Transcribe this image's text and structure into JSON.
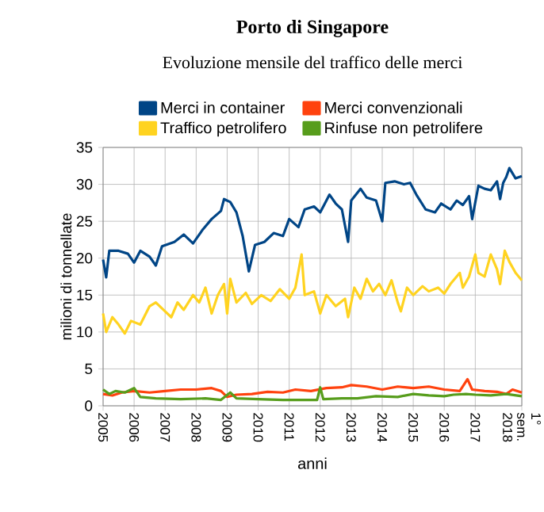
{
  "chart_data": {
    "type": "line",
    "title": "Porto di Singapore",
    "subtitle": "Evoluzione mensile del traffico delle merci",
    "xlabel": "anni",
    "ylabel": "milioni di tonnellate",
    "xlim": [
      2005,
      2018.5
    ],
    "xticks": [
      2005,
      2006,
      2007,
      2008,
      2009,
      2010,
      2011,
      2012,
      2013,
      2014,
      2015,
      2016,
      2017,
      {
        "value": 2018.5,
        "label": "1° sem. 2018"
      }
    ],
    "ylim": [
      0,
      35
    ],
    "yticks": [
      0,
      5,
      10,
      15,
      20,
      25,
      30,
      35
    ],
    "grid": true,
    "legend": "top",
    "marker": "none",
    "line_style": "solid",
    "series": [
      {
        "name": "Merci in container",
        "color": "#004586",
        "x": [
          2005.0,
          2005.1,
          2005.2,
          2005.5,
          2005.8,
          2006.0,
          2006.2,
          2006.5,
          2006.7,
          2006.9,
          2007.3,
          2007.6,
          2007.9,
          2008.2,
          2008.5,
          2008.8,
          2008.9,
          2009.1,
          2009.3,
          2009.5,
          2009.7,
          2009.9,
          2010.2,
          2010.5,
          2010.8,
          2011.0,
          2011.3,
          2011.5,
          2011.8,
          2012.0,
          2012.3,
          2012.5,
          2012.7,
          2012.9,
          2013.0,
          2013.3,
          2013.5,
          2013.8,
          2014.0,
          2014.1,
          2014.4,
          2014.7,
          2014.9,
          2015.1,
          2015.4,
          2015.7,
          2015.9,
          2016.2,
          2016.4,
          2016.6,
          2016.8,
          2016.9,
          2017.1,
          2017.3,
          2017.5,
          2017.7,
          2017.8,
          2017.9,
          2018.0,
          2018.1,
          2018.3,
          2018.5
        ],
        "values": [
          19.8,
          17.4,
          21,
          21,
          20.6,
          19.4,
          21,
          20.2,
          19,
          21.6,
          22.2,
          23.2,
          22,
          23.8,
          25.3,
          26.4,
          28,
          27.6,
          26.2,
          23,
          18.2,
          21.8,
          22.2,
          23.4,
          23,
          25.3,
          24.2,
          26.6,
          27,
          26.2,
          28.6,
          27.4,
          26.6,
          22.2,
          27.8,
          29.4,
          28.2,
          27.8,
          25,
          30.2,
          30.4,
          30,
          30.2,
          28.6,
          26.6,
          26.2,
          27.4,
          26.6,
          27.8,
          27.2,
          28.4,
          25.3,
          29.8,
          29.4,
          29.2,
          30.4,
          28,
          30.2,
          31,
          32.2,
          30.8,
          31.1
        ]
      },
      {
        "name": "Merci convenzionali",
        "color": "#ff420e",
        "x": [
          2005.0,
          2005.3,
          2005.6,
          2006.0,
          2006.5,
          2007.0,
          2007.5,
          2008.0,
          2008.5,
          2008.8,
          2009.0,
          2009.3,
          2009.8,
          2010.3,
          2010.8,
          2011.2,
          2011.7,
          2012.2,
          2012.7,
          2013.0,
          2013.5,
          2014.0,
          2014.5,
          2015.0,
          2015.5,
          2016.0,
          2016.5,
          2016.75,
          2016.9,
          2017.3,
          2017.7,
          2018.0,
          2018.2,
          2018.5
        ],
        "values": [
          1.6,
          1.4,
          1.8,
          2.0,
          1.8,
          2.0,
          2.2,
          2.2,
          2.4,
          2.0,
          1.2,
          1.5,
          1.6,
          1.9,
          1.8,
          2.2,
          2.0,
          2.4,
          2.5,
          2.8,
          2.6,
          2.2,
          2.6,
          2.4,
          2.6,
          2.2,
          2.0,
          3.6,
          2.2,
          2.0,
          1.9,
          1.6,
          2.2,
          1.8
        ]
      },
      {
        "name": "Traffico petrolifero",
        "color": "#ffd320",
        "x": [
          2005.0,
          2005.1,
          2005.3,
          2005.5,
          2005.7,
          2005.9,
          2006.2,
          2006.5,
          2006.7,
          2007.0,
          2007.2,
          2007.4,
          2007.6,
          2007.9,
          2008.1,
          2008.3,
          2008.5,
          2008.7,
          2008.9,
          2009.0,
          2009.1,
          2009.3,
          2009.6,
          2009.8,
          2010.1,
          2010.4,
          2010.7,
          2011.0,
          2011.2,
          2011.4,
          2011.5,
          2011.8,
          2012.0,
          2012.2,
          2012.5,
          2012.8,
          2012.9,
          2013.1,
          2013.3,
          2013.5,
          2013.7,
          2013.9,
          2014.1,
          2014.3,
          2014.5,
          2014.6,
          2014.8,
          2015.0,
          2015.3,
          2015.5,
          2015.8,
          2016.0,
          2016.2,
          2016.5,
          2016.6,
          2016.8,
          2017.0,
          2017.1,
          2017.3,
          2017.5,
          2017.7,
          2017.8,
          2017.95,
          2018.1,
          2018.3,
          2018.5
        ],
        "values": [
          12.5,
          10,
          12,
          11,
          9.8,
          11.5,
          11,
          13.5,
          14,
          12.8,
          12,
          14,
          13,
          15,
          14,
          16,
          12.5,
          15,
          16.5,
          12.5,
          17.2,
          14,
          15.3,
          13.8,
          15,
          14.2,
          15.8,
          14.5,
          16,
          20.5,
          15,
          15.5,
          12.5,
          15,
          13.5,
          14.5,
          12,
          16,
          14.5,
          17.2,
          15.5,
          16.5,
          15,
          17,
          14,
          12.8,
          16,
          15,
          16.2,
          15.5,
          16,
          15.2,
          16.5,
          18,
          16,
          17.5,
          20.5,
          18,
          17.5,
          20.5,
          18.5,
          16.5,
          21,
          19.5,
          18,
          17
        ]
      },
      {
        "name": "Rinfuse non petrolifere",
        "color": "#579d1c",
        "x": [
          2005.0,
          2005.2,
          2005.4,
          2005.7,
          2006.0,
          2006.2,
          2006.7,
          2007.5,
          2008.3,
          2008.8,
          2009.1,
          2009.3,
          2010.0,
          2010.8,
          2011.5,
          2011.9,
          2012.0,
          2012.1,
          2012.7,
          2013.2,
          2013.8,
          2014.5,
          2015.0,
          2015.5,
          2016.0,
          2016.3,
          2016.7,
          2017.0,
          2017.5,
          2018.0,
          2018.5
        ],
        "values": [
          2.2,
          1.6,
          2.0,
          1.8,
          2.4,
          1.2,
          1.0,
          0.9,
          1.0,
          0.8,
          1.8,
          1.0,
          0.9,
          0.8,
          0.8,
          0.8,
          2.5,
          0.9,
          1.0,
          1.0,
          1.3,
          1.2,
          1.6,
          1.4,
          1.3,
          1.5,
          1.6,
          1.5,
          1.4,
          1.6,
          1.3
        ]
      }
    ]
  }
}
